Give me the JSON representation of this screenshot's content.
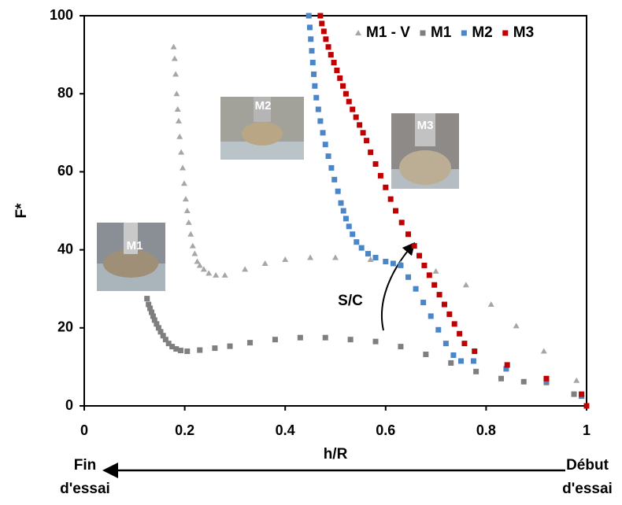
{
  "chart_data": {
    "type": "scatter",
    "xlabel": "h/R",
    "ylabel": "F*",
    "xlim": [
      0,
      1
    ],
    "xticks": [
      0,
      0.2,
      0.4,
      0.6,
      0.8,
      1
    ],
    "ylim": [
      0,
      100
    ],
    "yticks": [
      0,
      20,
      40,
      60,
      80,
      100
    ],
    "legend": "top-right",
    "series": [
      {
        "name": "M1 - V",
        "color": "#a6a6a6",
        "marker": "triangle",
        "x": [
          0.178,
          0.18,
          0.182,
          0.184,
          0.186,
          0.188,
          0.19,
          0.193,
          0.196,
          0.199,
          0.202,
          0.205,
          0.208,
          0.212,
          0.216,
          0.22,
          0.225,
          0.23,
          0.238,
          0.248,
          0.262,
          0.28,
          0.32,
          0.36,
          0.4,
          0.45,
          0.5,
          0.57,
          0.63,
          0.7,
          0.76,
          0.81,
          0.86,
          0.915,
          0.98,
          0.99
        ],
        "values": [
          92,
          89,
          85,
          80,
          76,
          73,
          69,
          65,
          61,
          57,
          53,
          50,
          47,
          44,
          41,
          39,
          37,
          36,
          35,
          34,
          33.5,
          33.5,
          35,
          36.5,
          37.5,
          38,
          38,
          37.5,
          36.5,
          34.5,
          31,
          26,
          20.5,
          14,
          6.5,
          2.5
        ]
      },
      {
        "name": "M1",
        "color": "#7f7f7f",
        "marker": "square",
        "x": [
          0.125,
          0.128,
          0.131,
          0.134,
          0.137,
          0.14,
          0.144,
          0.148,
          0.152,
          0.157,
          0.162,
          0.168,
          0.175,
          0.183,
          0.192,
          0.205,
          0.23,
          0.26,
          0.29,
          0.33,
          0.38,
          0.43,
          0.48,
          0.53,
          0.58,
          0.63,
          0.68,
          0.73,
          0.78,
          0.83,
          0.875,
          0.92,
          0.975,
          0.99
        ],
        "values": [
          27.5,
          26,
          25,
          24,
          23,
          22,
          21,
          20,
          19,
          18,
          17,
          16,
          15.2,
          14.6,
          14.2,
          14,
          14.3,
          14.8,
          15.3,
          16.2,
          17,
          17.5,
          17.5,
          17,
          16.5,
          15.2,
          13.2,
          11,
          8.8,
          7,
          6.2,
          6,
          3,
          2.7
        ]
      },
      {
        "name": "M2",
        "color": "#4a86c8",
        "marker": "square",
        "x": [
          0.447,
          0.449,
          0.451,
          0.453,
          0.455,
          0.457,
          0.459,
          0.462,
          0.466,
          0.47,
          0.475,
          0.48,
          0.486,
          0.492,
          0.498,
          0.505,
          0.511,
          0.516,
          0.521,
          0.527,
          0.534,
          0.542,
          0.552,
          0.565,
          0.58,
          0.6,
          0.615,
          0.63,
          0.645,
          0.66,
          0.675,
          0.69,
          0.705,
          0.72,
          0.735,
          0.75,
          0.775,
          0.84,
          0.92,
          0.99
        ],
        "values": [
          100,
          97,
          94,
          91,
          88,
          85,
          82,
          79,
          76,
          73,
          70,
          67,
          64,
          61,
          58,
          55,
          52,
          50,
          48,
          46,
          44,
          42,
          40.5,
          39,
          38,
          37,
          36.5,
          36,
          33,
          30,
          26.5,
          23,
          19.5,
          16,
          13,
          11.5,
          11.5,
          9.5,
          6.5,
          2.5
        ]
      },
      {
        "name": "M3",
        "color": "#c00000",
        "marker": "square",
        "x": [
          0.47,
          0.473,
          0.477,
          0.481,
          0.486,
          0.491,
          0.497,
          0.503,
          0.509,
          0.515,
          0.521,
          0.527,
          0.534,
          0.541,
          0.548,
          0.555,
          0.562,
          0.57,
          0.58,
          0.59,
          0.6,
          0.61,
          0.62,
          0.632,
          0.645,
          0.657,
          0.667,
          0.677,
          0.687,
          0.697,
          0.707,
          0.717,
          0.727,
          0.737,
          0.747,
          0.757,
          0.777,
          0.842,
          0.92,
          0.99,
          1.0
        ],
        "values": [
          100,
          98,
          96,
          94,
          92,
          90,
          88,
          86,
          84,
          82,
          80,
          78,
          76,
          74,
          72,
          70,
          68,
          65,
          62,
          59,
          56,
          53,
          50,
          47,
          44,
          41,
          38.5,
          36,
          33.5,
          31,
          28.5,
          26,
          23.5,
          21,
          18.5,
          16,
          14,
          10.5,
          7,
          3,
          0
        ]
      }
    ],
    "photo_labels": [
      "M1",
      "M2",
      "M3"
    ],
    "annotation": "S/C",
    "start_label": [
      "Début",
      "d'essai"
    ],
    "end_label": [
      "Fin",
      "d'essai"
    ]
  }
}
